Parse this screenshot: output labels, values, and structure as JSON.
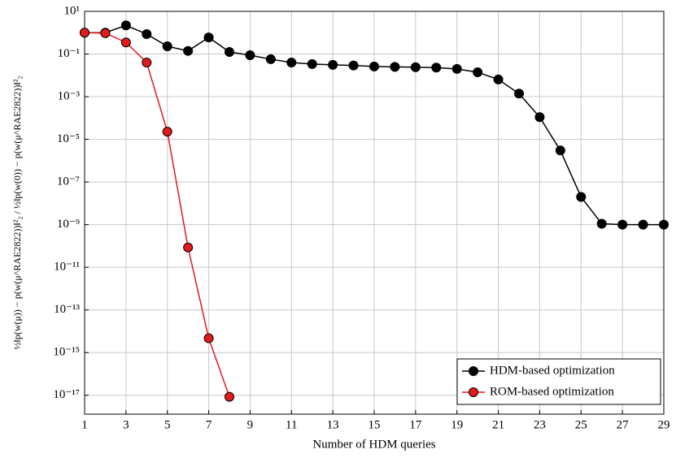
{
  "chart_data": {
    "type": "line",
    "x_label": "Number of HDM queries",
    "y_label": "½‖p(w(μ)) − p(w(μ^RAE2822))‖²₂ / ½‖p(w(0)) − p(w(μ^RAE2822))‖²₂",
    "x": [
      1,
      2,
      3,
      4,
      5,
      6,
      7,
      8,
      9,
      10,
      11,
      12,
      13,
      14,
      15,
      16,
      17,
      18,
      19,
      20,
      21,
      22,
      23,
      24,
      25,
      26,
      27,
      28,
      29
    ],
    "series": [
      {
        "name": "HDM-based optimization",
        "color": "#000000",
        "values": [
          1.0,
          1.0,
          2.2,
          0.86,
          0.23,
          0.14,
          0.6,
          0.125,
          0.088,
          0.057,
          0.04,
          0.034,
          0.031,
          0.029,
          0.026,
          0.025,
          0.024,
          0.023,
          0.02,
          0.014,
          0.0064,
          0.0014,
          0.00011,
          3e-06,
          2e-08,
          1.1e-09,
          1e-09,
          1e-09,
          1e-09
        ]
      },
      {
        "name": "ROM-based optimization",
        "color": "#e31a1c",
        "values": [
          1.0,
          0.95,
          0.35,
          0.04,
          2.3e-05,
          8.5e-11,
          4.7e-15,
          8.5e-18,
          null,
          null,
          null,
          null,
          null,
          null,
          null,
          null,
          null,
          null,
          null,
          null,
          null,
          null,
          null,
          null,
          null,
          null,
          null,
          null,
          null
        ]
      }
    ],
    "xlim": [
      1,
      29
    ],
    "xticks": [
      1,
      3,
      5,
      7,
      9,
      11,
      13,
      15,
      17,
      19,
      21,
      23,
      25,
      27,
      29
    ],
    "ylim": [
      1.3e-18,
      10
    ],
    "y_scale": "log",
    "yticks": [
      {
        "value": 10,
        "label": "10¹"
      },
      {
        "value": 0.1,
        "label": "10⁻¹"
      },
      {
        "value": 0.001,
        "label": "10⁻³"
      },
      {
        "value": 1e-05,
        "label": "10⁻⁵"
      },
      {
        "value": 1e-07,
        "label": "10⁻⁷"
      },
      {
        "value": 1e-09,
        "label": "10⁻⁹"
      },
      {
        "value": 1e-11,
        "label": "10⁻¹¹"
      },
      {
        "value": 1e-13,
        "label": "10⁻¹³"
      },
      {
        "value": 1e-15,
        "label": "10⁻¹⁵"
      },
      {
        "value": 1e-17,
        "label": "10⁻¹⁷"
      }
    ],
    "grid": true,
    "legend": "lower right"
  }
}
